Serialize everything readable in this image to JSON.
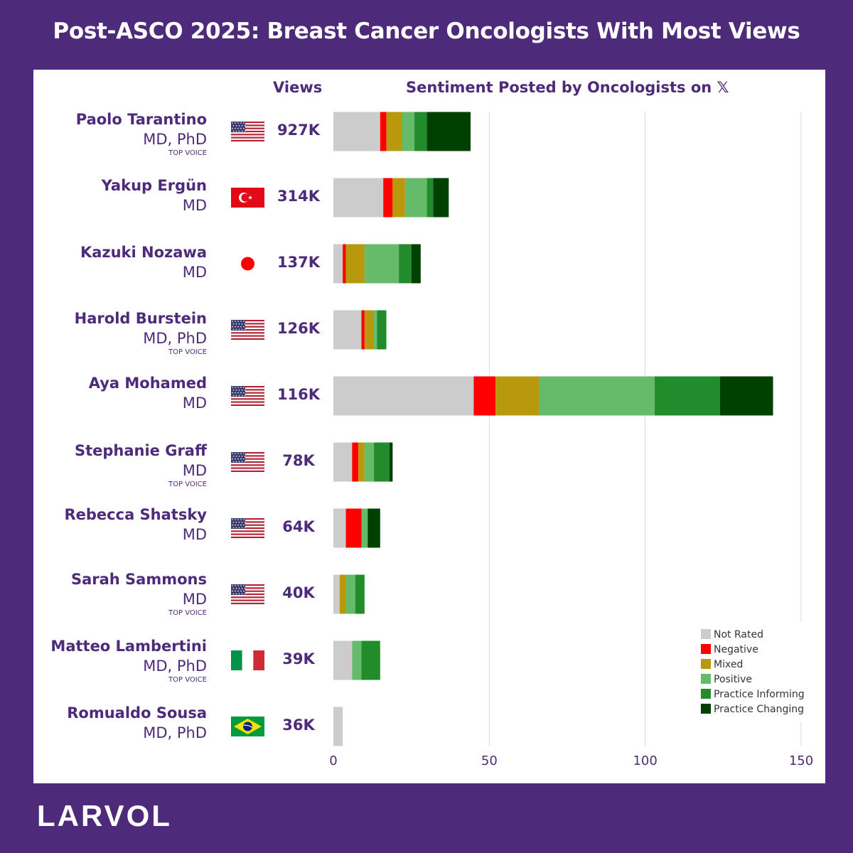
{
  "title": "Post-ASCO 2025: Breast Cancer Oncologists With Most Views",
  "brand": "LARVOL",
  "headers": {
    "views": "Views",
    "sentiment": "Sentiment Posted by Oncologists on",
    "platform_glyph": "𝕏"
  },
  "colors": {
    "background": "#4e2a7a",
    "Not Rated": "#cccccc",
    "Negative": "#ff0000",
    "Mixed": "#b8980c",
    "Positive": "#66bb6a",
    "Practice Informing": "#228b2b",
    "Practice Changing": "#004000"
  },
  "oncologists": [
    {
      "name": "Paolo Tarantino",
      "credentials": "MD, PhD",
      "badge": "TOP VOICE",
      "country": "United States",
      "flag_icon": "us-flag-icon",
      "views": "927K"
    },
    {
      "name": "Yakup Ergün",
      "credentials": "MD",
      "badge": "",
      "country": "Turkey",
      "flag_icon": "turkey-flag-icon",
      "views": "314K"
    },
    {
      "name": "Kazuki Nozawa",
      "credentials": "MD",
      "badge": "",
      "country": "Japan",
      "flag_icon": "japan-flag-icon",
      "views": "137K"
    },
    {
      "name": "Harold Burstein",
      "credentials": "MD, PhD",
      "badge": "TOP VOICE",
      "country": "United States",
      "flag_icon": "us-flag-icon",
      "views": "126K"
    },
    {
      "name": "Aya Mohamed",
      "credentials": "MD",
      "badge": "",
      "country": "United States",
      "flag_icon": "us-flag-icon",
      "views": "116K"
    },
    {
      "name": "Stephanie Graff",
      "credentials": "MD",
      "badge": "TOP VOICE",
      "country": "United States",
      "flag_icon": "us-flag-icon",
      "views": "78K"
    },
    {
      "name": "Rebecca Shatsky",
      "credentials": "MD",
      "badge": "",
      "country": "United States",
      "flag_icon": "us-flag-icon",
      "views": "64K"
    },
    {
      "name": "Sarah Sammons",
      "credentials": "MD",
      "badge": "TOP VOICE",
      "country": "United States",
      "flag_icon": "us-flag-icon",
      "views": "40K"
    },
    {
      "name": "Matteo Lambertini",
      "credentials": "MD, PhD",
      "badge": "TOP VOICE",
      "country": "Italy",
      "flag_icon": "italy-flag-icon",
      "views": "39K"
    },
    {
      "name": "Romualdo Sousa",
      "credentials": "MD, PhD",
      "badge": "",
      "country": "Brazil",
      "flag_icon": "brazil-flag-icon",
      "views": "36K"
    }
  ],
  "chart_data": {
    "type": "bar",
    "orientation": "horizontal",
    "stacked": true,
    "title": "Sentiment Posted by Oncologists on 𝕏",
    "categories": [
      "Paolo Tarantino",
      "Yakup Ergün",
      "Kazuki Nozawa",
      "Harold Burstein",
      "Aya Mohamed",
      "Stephanie Graff",
      "Rebecca Shatsky",
      "Sarah Sammons",
      "Matteo Lambertini",
      "Romualdo Sousa"
    ],
    "series": [
      {
        "name": "Not Rated",
        "values": [
          15,
          16,
          3,
          9,
          45,
          6,
          4,
          2,
          6,
          3
        ]
      },
      {
        "name": "Negative",
        "values": [
          2,
          3,
          1,
          1,
          7,
          2,
          5,
          0,
          0,
          0
        ]
      },
      {
        "name": "Mixed",
        "values": [
          5,
          4,
          6,
          3,
          14,
          2,
          0,
          2,
          0,
          0
        ]
      },
      {
        "name": "Positive",
        "values": [
          4,
          7,
          11,
          1,
          37,
          3,
          2,
          3,
          3,
          0
        ]
      },
      {
        "name": "Practice Informing",
        "values": [
          4,
          2,
          4,
          3,
          21,
          5,
          0,
          3,
          6,
          0
        ]
      },
      {
        "name": "Practice Changing",
        "values": [
          14,
          5,
          3,
          0,
          17,
          1,
          4,
          0,
          0,
          0
        ]
      }
    ],
    "xlim": [
      0,
      150
    ],
    "xticks": [
      0,
      50,
      100,
      150
    ],
    "grid": true,
    "legend_position": "bottom-right",
    "legend": [
      "Not Rated",
      "Negative",
      "Mixed",
      "Positive",
      "Practice Informing",
      "Practice Changing"
    ]
  }
}
